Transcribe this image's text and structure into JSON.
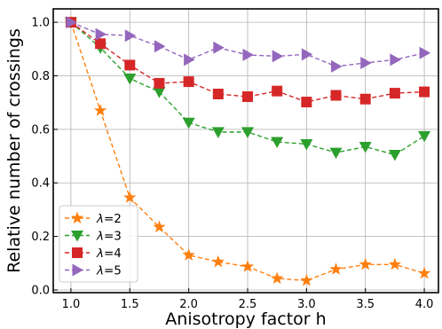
{
  "chart_data": {
    "type": "line",
    "xlabel": "Anisotropy factor h",
    "ylabel": "Relative number of crossings",
    "xlim": [
      0.85,
      4.12
    ],
    "ylim": [
      -0.01,
      1.05
    ],
    "xticks": [
      1.0,
      1.5,
      2.0,
      2.5,
      3.0,
      3.5,
      4.0
    ],
    "xtick_labels": [
      "1.0",
      "1.5",
      "2.0",
      "2.5",
      "3.0",
      "3.5",
      "4.0"
    ],
    "yticks": [
      0.0,
      0.2,
      0.4,
      0.6,
      0.8,
      1.0
    ],
    "ytick_labels": [
      "0.0",
      "0.2",
      "0.4",
      "0.6",
      "0.8",
      "1.0"
    ],
    "grid": true,
    "legend_position": "lower-left",
    "x": [
      1.0,
      1.25,
      1.5,
      1.75,
      2.0,
      2.25,
      2.5,
      2.75,
      3.0,
      3.25,
      3.5,
      3.75,
      4.0
    ],
    "series": [
      {
        "name_prefix": "λ",
        "name_suffix": "=2",
        "color": "#ff7f0e",
        "marker": "star",
        "values": [
          1.0,
          0.67,
          0.345,
          0.235,
          0.13,
          0.105,
          0.087,
          0.043,
          0.035,
          0.077,
          0.095,
          0.095,
          0.062
        ]
      },
      {
        "name_prefix": "λ",
        "name_suffix": "=3",
        "color": "#2ca02c",
        "marker": "triangle-down",
        "values": [
          1.0,
          0.905,
          0.79,
          0.74,
          0.625,
          0.59,
          0.59,
          0.553,
          0.545,
          0.513,
          0.535,
          0.505,
          0.575
        ]
      },
      {
        "name_prefix": "λ",
        "name_suffix": "=4",
        "color": "#d62728",
        "marker": "square",
        "values": [
          1.0,
          0.92,
          0.84,
          0.772,
          0.778,
          0.732,
          0.722,
          0.743,
          0.702,
          0.727,
          0.713,
          0.735,
          0.74
        ]
      },
      {
        "name_prefix": "λ",
        "name_suffix": "=5",
        "color": "#9467bd",
        "marker": "triangle-right",
        "values": [
          1.0,
          0.955,
          0.95,
          0.91,
          0.86,
          0.905,
          0.878,
          0.873,
          0.88,
          0.835,
          0.848,
          0.86,
          0.885
        ]
      }
    ]
  }
}
